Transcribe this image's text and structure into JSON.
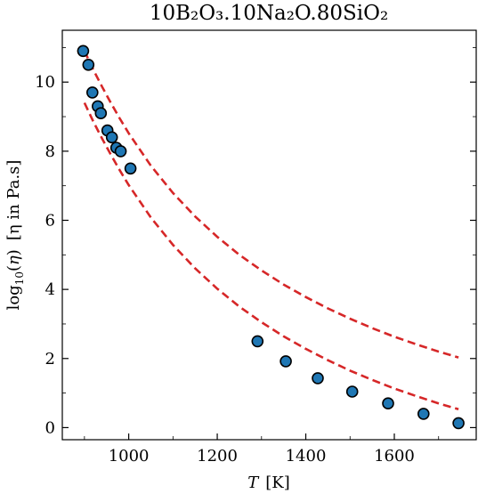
{
  "chart_data": {
    "type": "scatter",
    "title": "10B₂O₃.10Na₂O.80SiO₂",
    "xlabel": {
      "symbol": "T",
      "unit": "[K]"
    },
    "ylabel": {
      "prefix": "log",
      "sub": "10",
      "open": "(",
      "symbol": "η",
      "close": ")",
      "unit": "[η in Pa.s]"
    },
    "xlim": [
      850,
      1785
    ],
    "ylim": [
      -0.35,
      11.5
    ],
    "xticks": [
      1000,
      1200,
      1400,
      1600
    ],
    "yticks": [
      0,
      2,
      4,
      6,
      8,
      10
    ],
    "grid": false,
    "legend": "none",
    "colors": {
      "points": "#1f77b4",
      "curves": "#d62728"
    },
    "points": {
      "x": [
        897,
        909,
        918,
        930,
        937,
        952,
        962,
        972,
        982,
        1004,
        1291,
        1355,
        1427,
        1505,
        1586,
        1666,
        1745
      ],
      "y": [
        10.9,
        10.5,
        9.7,
        9.3,
        9.1,
        8.6,
        8.4,
        8.1,
        8.0,
        7.5,
        2.5,
        1.92,
        1.43,
        1.04,
        0.7,
        0.4,
        0.13
      ]
    },
    "curves": [
      {
        "style": "dashed",
        "x": [
          900,
          920,
          940,
          960,
          980,
          1000,
          1050,
          1100,
          1150,
          1200,
          1250,
          1300,
          1350,
          1400,
          1450,
          1500,
          1550,
          1600,
          1650,
          1700,
          1745
        ],
        "y": [
          10.9,
          10.36,
          9.86,
          9.39,
          8.94,
          8.52,
          7.58,
          6.79,
          6.11,
          5.52,
          5.0,
          4.55,
          4.14,
          3.78,
          3.45,
          3.15,
          2.88,
          2.63,
          2.41,
          2.2,
          2.03
        ]
      },
      {
        "style": "dashed",
        "x": [
          900,
          920,
          940,
          960,
          980,
          1000,
          1050,
          1100,
          1150,
          1200,
          1250,
          1300,
          1350,
          1400,
          1450,
          1500,
          1550,
          1600,
          1650,
          1700,
          1745
        ],
        "y": [
          9.4,
          8.86,
          8.36,
          7.89,
          7.44,
          7.02,
          6.08,
          5.29,
          4.61,
          4.02,
          3.5,
          3.05,
          2.64,
          2.28,
          1.95,
          1.65,
          1.38,
          1.13,
          0.91,
          0.7,
          0.53
        ]
      }
    ]
  }
}
